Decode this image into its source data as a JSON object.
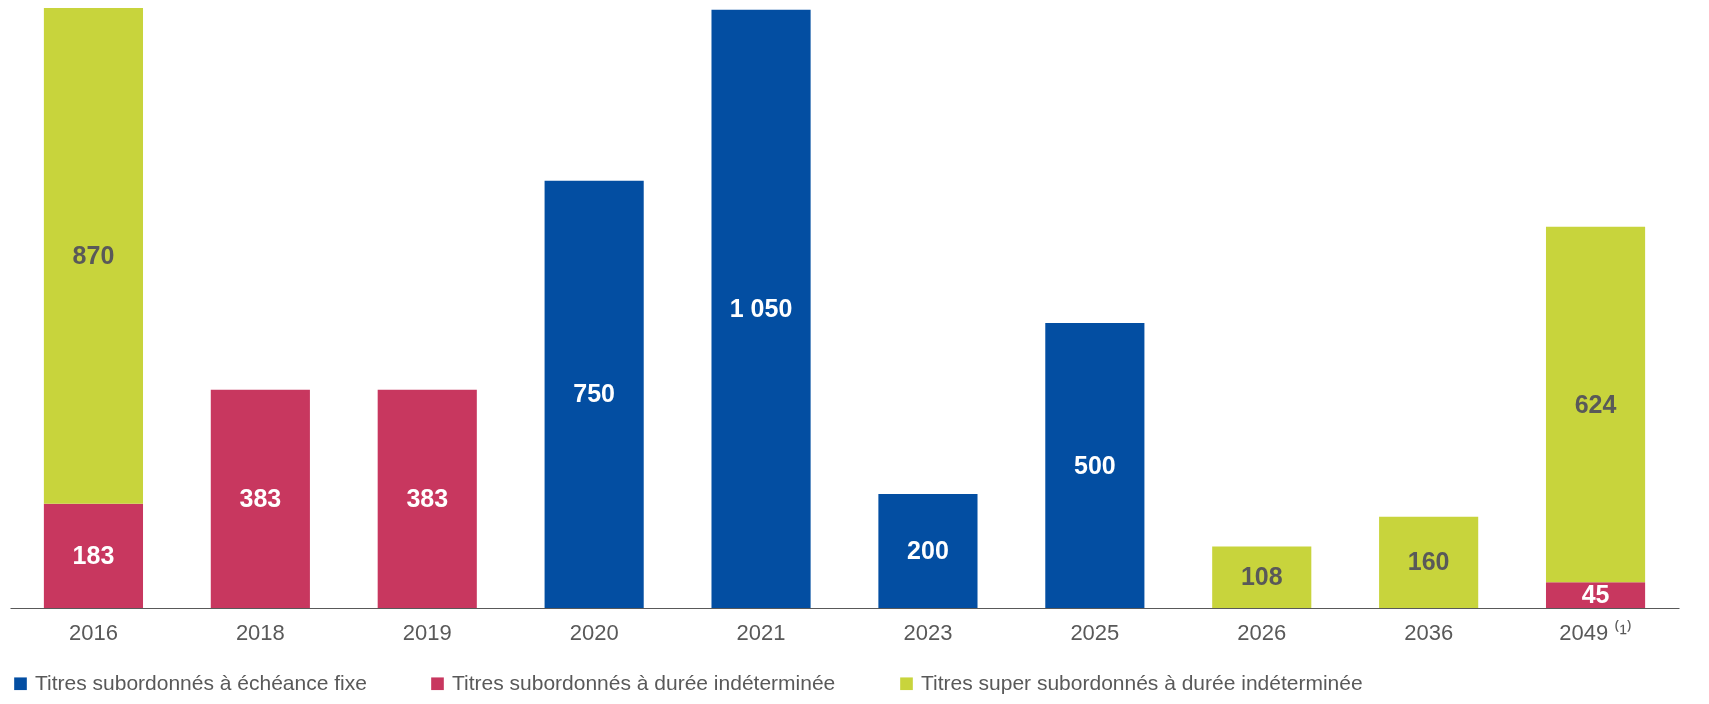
{
  "chart_data": {
    "type": "bar",
    "stacked": true,
    "categories": [
      "2016",
      "2018",
      "2019",
      "2020",
      "2021",
      "2023",
      "2025",
      "2026",
      "2036",
      "2049 ⁽¹⁾"
    ],
    "series": [
      {
        "name": "Titres subordonnés à échéance fixe",
        "color": "#034ea2",
        "values": [
          null,
          null,
          null,
          750,
          1050,
          200,
          500,
          null,
          null,
          null
        ],
        "value_labels": [
          null,
          null,
          null,
          "750",
          "1 050",
          "200",
          "500",
          null,
          null,
          null
        ]
      },
      {
        "name": "Titres subordonnés à durée indéterminée",
        "color": "#c8375f",
        "values": [
          183,
          383,
          383,
          null,
          null,
          null,
          null,
          null,
          null,
          45
        ],
        "value_labels": [
          "183",
          "383",
          "383",
          null,
          null,
          null,
          null,
          null,
          null,
          "45"
        ]
      },
      {
        "name": "Titres super subordonnés à durée indéterminée",
        "color": "#c8d43c",
        "values": [
          870,
          null,
          null,
          null,
          null,
          null,
          null,
          108,
          160,
          624
        ],
        "value_labels": [
          "870",
          null,
          null,
          null,
          null,
          null,
          null,
          "108",
          "160",
          "624"
        ]
      }
    ],
    "legend": "bottom",
    "grid": false
  }
}
